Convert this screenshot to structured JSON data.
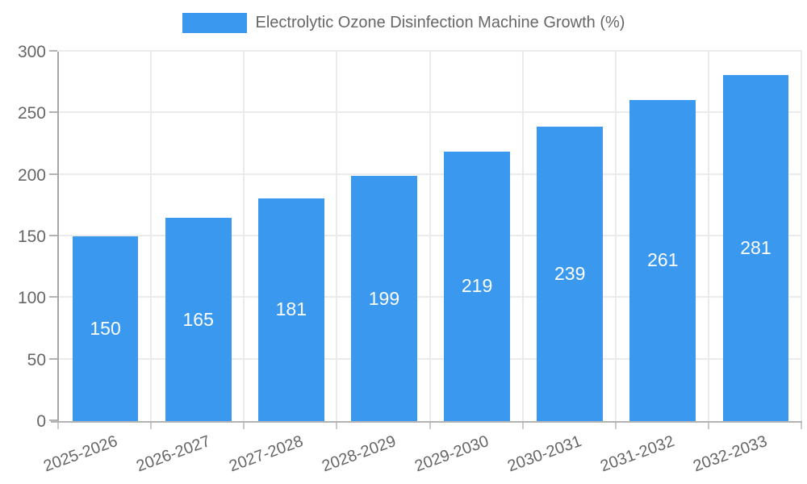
{
  "chart_data": {
    "type": "bar",
    "title": "Electrolytic Ozone Disinfection Machine Growth (%)",
    "legend": [
      "Electrolytic Ozone Disinfection Machine Growth (%)"
    ],
    "legend_position": "top-center",
    "categories": [
      "2025-2026",
      "2026-2027",
      "2027-2028",
      "2028-2029",
      "2029-2030",
      "2030-2031",
      "2031-2032",
      "2032-2033"
    ],
    "values": [
      150,
      165,
      181,
      199,
      219,
      239,
      261,
      281
    ],
    "value_labels": [
      "150",
      "165",
      "181",
      "199",
      "219",
      "239",
      "261",
      "281"
    ],
    "xlabel": "",
    "ylabel": "",
    "ylim": [
      0,
      300
    ],
    "yticks": [
      0,
      50,
      100,
      150,
      200,
      250,
      300
    ],
    "grid": "on",
    "bar_color": "#3a99ee",
    "value_label_color": "#ffffff",
    "axis_text_color": "#666666"
  }
}
